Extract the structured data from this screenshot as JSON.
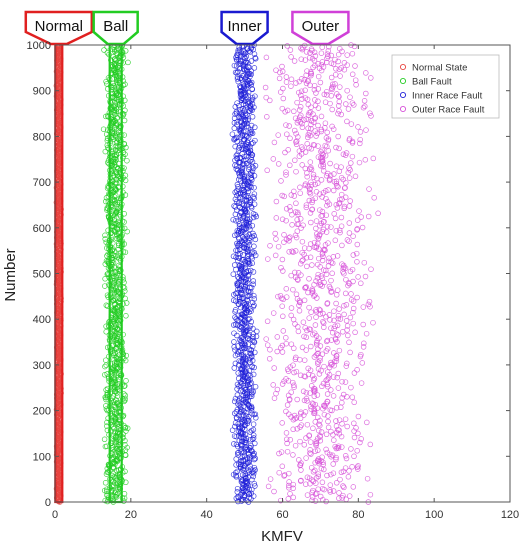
{
  "chart_data": {
    "type": "scatter",
    "title": "",
    "xlabel": "KMFV",
    "ylabel": "Number",
    "xlim": [
      0,
      120
    ],
    "ylim": [
      0,
      1000
    ],
    "x_ticks": [
      0,
      20,
      40,
      60,
      80,
      100,
      120
    ],
    "y_ticks": [
      0,
      100,
      200,
      300,
      400,
      500,
      600,
      700,
      800,
      900,
      1000
    ],
    "grid": false,
    "legend_position": "top-right",
    "marker": "open-circle",
    "series": [
      {
        "name": "Normal State",
        "color": "#e8433e",
        "x_center": 1,
        "x_spread": 0.3,
        "y_range": [
          0,
          1000
        ]
      },
      {
        "name": "Ball Fault",
        "color": "#22cc22",
        "x_center": 16,
        "x_spread": 1.5,
        "y_range": [
          0,
          1000
        ]
      },
      {
        "name": "Inner Race Fault",
        "color": "#2020d8",
        "x_center": 50,
        "x_spread": 1.5,
        "y_range": [
          0,
          1000
        ]
      },
      {
        "name": "Outer Race Fault",
        "color": "#d64fd8",
        "x_center": 70,
        "x_spread": 7,
        "y_range": [
          0,
          1000
        ]
      }
    ],
    "annotations": [
      {
        "text": "Normal",
        "color": "#e02020",
        "x": 1
      },
      {
        "text": "Ball",
        "color": "#22cc22",
        "x": 16
      },
      {
        "text": "Inner",
        "color": "#1a1ad0",
        "x": 50
      },
      {
        "text": "Outer",
        "color": "#d040d8",
        "x": 70
      }
    ]
  }
}
